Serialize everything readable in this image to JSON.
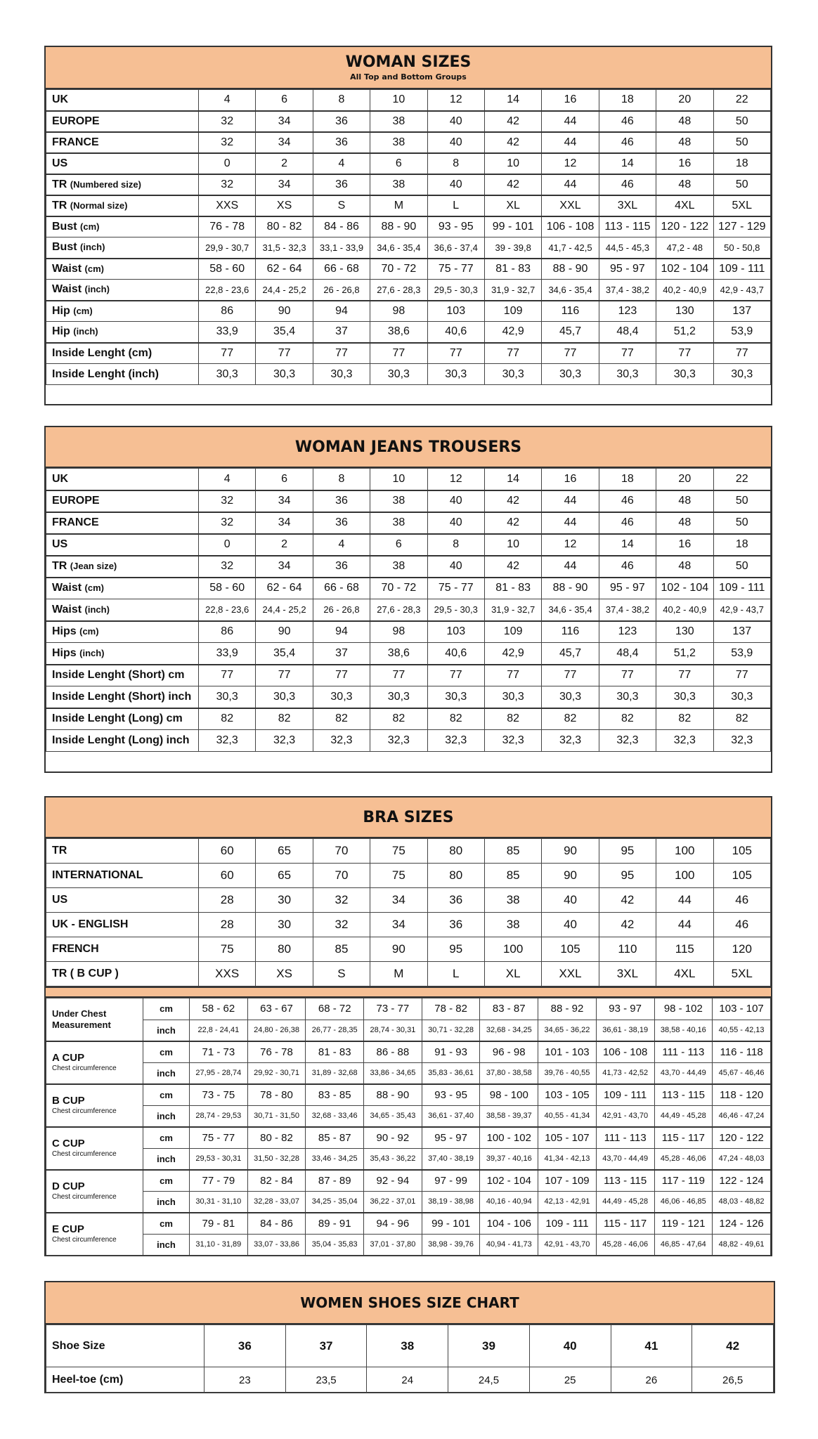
{
  "colors": {
    "header_fill": "#f6bf94",
    "border": "#333333"
  },
  "woman_sizes": {
    "title": "WOMAN SIZES",
    "subtitle": "All Top and Bottom Groups",
    "rows": [
      {
        "label": "UK",
        "sub": "",
        "g": 1,
        "values": [
          "4",
          "6",
          "8",
          "10",
          "12",
          "14",
          "16",
          "18",
          "20",
          "22"
        ]
      },
      {
        "label": "EUROPE",
        "sub": "",
        "g": 1,
        "values": [
          "32",
          "34",
          "36",
          "38",
          "40",
          "42",
          "44",
          "46",
          "48",
          "50"
        ]
      },
      {
        "label": "FRANCE",
        "sub": "",
        "g": 1,
        "values": [
          "32",
          "34",
          "36",
          "38",
          "40",
          "42",
          "44",
          "46",
          "48",
          "50"
        ]
      },
      {
        "label": "US",
        "sub": "",
        "g": 1,
        "values": [
          "0",
          "2",
          "4",
          "6",
          "8",
          "10",
          "12",
          "14",
          "16",
          "18"
        ]
      },
      {
        "label": "TR",
        "sub": "(Numbered size)",
        "g": 1,
        "values": [
          "32",
          "34",
          "36",
          "38",
          "40",
          "42",
          "44",
          "46",
          "48",
          "50"
        ]
      },
      {
        "label": "TR",
        "sub": "(Normal size)",
        "g": 1,
        "values": [
          "XXS",
          "XS",
          "S",
          "M",
          "L",
          "XL",
          "XXL",
          "3XL",
          "4XL",
          "5XL"
        ]
      },
      {
        "label": "Bust",
        "sub": "(cm)",
        "g": 1,
        "values": [
          "76 - 78",
          "80 - 82",
          "84 - 86",
          "88 - 90",
          "93 - 95",
          "99 - 101",
          "106 - 108",
          "113 - 115",
          "120 - 122",
          "127 - 129"
        ]
      },
      {
        "label": "Bust",
        "sub": "(inch)",
        "g": 0,
        "small": 1,
        "values": [
          "29,9 - 30,7",
          "31,5 - 32,3",
          "33,1 - 33,9",
          "34,6 - 35,4",
          "36,6 - 37,4",
          "39 - 39,8",
          "41,7 - 42,5",
          "44,5 - 45,3",
          "47,2 - 48",
          "50 - 50,8"
        ]
      },
      {
        "label": "Waist",
        "sub": "(cm)",
        "g": 1,
        "values": [
          "58 - 60",
          "62 - 64",
          "66 - 68",
          "70 - 72",
          "75 - 77",
          "81 - 83",
          "88 - 90",
          "95 - 97",
          "102 - 104",
          "109 - 111"
        ]
      },
      {
        "label": "Waist",
        "sub": "(inch)",
        "g": 0,
        "small": 1,
        "values": [
          "22,8 - 23,6",
          "24,4 - 25,2",
          "26 - 26,8",
          "27,6 - 28,3",
          "29,5 - 30,3",
          "31,9 - 32,7",
          "34,6 - 35,4",
          "37,4 - 38,2",
          "40,2 - 40,9",
          "42,9 - 43,7"
        ]
      },
      {
        "label": "Hip",
        "sub": "(cm)",
        "g": 1,
        "values": [
          "86",
          "90",
          "94",
          "98",
          "103",
          "109",
          "116",
          "123",
          "130",
          "137"
        ]
      },
      {
        "label": "Hip",
        "sub": "(inch)",
        "g": 0,
        "values": [
          "33,9",
          "35,4",
          "37",
          "38,6",
          "40,6",
          "42,9",
          "45,7",
          "48,4",
          "51,2",
          "53,9"
        ]
      },
      {
        "label": "Inside Lenght (cm)",
        "sub": "",
        "g": 1,
        "values": [
          "77",
          "77",
          "77",
          "77",
          "77",
          "77",
          "77",
          "77",
          "77",
          "77"
        ]
      },
      {
        "label": "Inside Lenght (inch)",
        "sub": "",
        "g": 0,
        "values": [
          "30,3",
          "30,3",
          "30,3",
          "30,3",
          "30,3",
          "30,3",
          "30,3",
          "30,3",
          "30,3",
          "30,3"
        ]
      }
    ]
  },
  "jeans": {
    "title": "WOMAN JEANS TROUSERS",
    "rows": [
      {
        "label": "UK",
        "sub": "",
        "g": 1,
        "values": [
          "4",
          "6",
          "8",
          "10",
          "12",
          "14",
          "16",
          "18",
          "20",
          "22"
        ]
      },
      {
        "label": "EUROPE",
        "sub": "",
        "g": 1,
        "values": [
          "32",
          "34",
          "36",
          "38",
          "40",
          "42",
          "44",
          "46",
          "48",
          "50"
        ]
      },
      {
        "label": "FRANCE",
        "sub": "",
        "g": 1,
        "values": [
          "32",
          "34",
          "36",
          "38",
          "40",
          "42",
          "44",
          "46",
          "48",
          "50"
        ]
      },
      {
        "label": "US",
        "sub": "",
        "g": 1,
        "values": [
          "0",
          "2",
          "4",
          "6",
          "8",
          "10",
          "12",
          "14",
          "16",
          "18"
        ]
      },
      {
        "label": "TR",
        "sub": "(Jean size)",
        "g": 1,
        "values": [
          "32",
          "34",
          "36",
          "38",
          "40",
          "42",
          "44",
          "46",
          "48",
          "50"
        ]
      },
      {
        "label": "Waist",
        "sub": "(cm)",
        "g": 1,
        "values": [
          "58 - 60",
          "62 - 64",
          "66 - 68",
          "70 - 72",
          "75 - 77",
          "81 - 83",
          "88 - 90",
          "95 - 97",
          "102 - 104",
          "109 - 111"
        ]
      },
      {
        "label": "Waist",
        "sub": "(inch)",
        "g": 0,
        "small": 1,
        "values": [
          "22,8 - 23,6",
          "24,4 - 25,2",
          "26 - 26,8",
          "27,6 - 28,3",
          "29,5 - 30,3",
          "31,9 - 32,7",
          "34,6 - 35,4",
          "37,4 - 38,2",
          "40,2 - 40,9",
          "42,9 - 43,7"
        ]
      },
      {
        "label": "Hips",
        "sub": "(cm)",
        "g": 1,
        "values": [
          "86",
          "90",
          "94",
          "98",
          "103",
          "109",
          "116",
          "123",
          "130",
          "137"
        ]
      },
      {
        "label": "Hips",
        "sub": "(inch)",
        "g": 0,
        "values": [
          "33,9",
          "35,4",
          "37",
          "38,6",
          "40,6",
          "42,9",
          "45,7",
          "48,4",
          "51,2",
          "53,9"
        ]
      },
      {
        "label": "Inside Lenght (Short) cm",
        "sub": "",
        "g": 1,
        "values": [
          "77",
          "77",
          "77",
          "77",
          "77",
          "77",
          "77",
          "77",
          "77",
          "77"
        ]
      },
      {
        "label": "Inside Lenght (Short) inch",
        "sub": "",
        "g": 0,
        "values": [
          "30,3",
          "30,3",
          "30,3",
          "30,3",
          "30,3",
          "30,3",
          "30,3",
          "30,3",
          "30,3",
          "30,3"
        ]
      },
      {
        "label": "Inside Lenght (Long) cm",
        "sub": "",
        "g": 1,
        "values": [
          "82",
          "82",
          "82",
          "82",
          "82",
          "82",
          "82",
          "82",
          "82",
          "82"
        ]
      },
      {
        "label": "Inside Lenght (Long) inch",
        "sub": "",
        "g": 0,
        "values": [
          "32,3",
          "32,3",
          "32,3",
          "32,3",
          "32,3",
          "32,3",
          "32,3",
          "32,3",
          "32,3",
          "32,3"
        ]
      }
    ]
  },
  "bra": {
    "title": "BRA SIZES",
    "size_rows": [
      {
        "label": "TR",
        "values": [
          "60",
          "65",
          "70",
          "75",
          "80",
          "85",
          "90",
          "95",
          "100",
          "105"
        ]
      },
      {
        "label": "INTERNATIONAL",
        "values": [
          "60",
          "65",
          "70",
          "75",
          "80",
          "85",
          "90",
          "95",
          "100",
          "105"
        ]
      },
      {
        "label": "US",
        "values": [
          "28",
          "30",
          "32",
          "34",
          "36",
          "38",
          "40",
          "42",
          "44",
          "46"
        ]
      },
      {
        "label": "UK - ENGLISH",
        "values": [
          "28",
          "30",
          "32",
          "34",
          "36",
          "38",
          "40",
          "42",
          "44",
          "46"
        ]
      },
      {
        "label": "FRENCH",
        "values": [
          "75",
          "80",
          "85",
          "90",
          "95",
          "100",
          "105",
          "110",
          "115",
          "120"
        ]
      },
      {
        "label": "TR ( B CUP )",
        "values": [
          "XXS",
          "XS",
          "S",
          "M",
          "L",
          "XL",
          "XXL",
          "3XL",
          "4XL",
          "5XL"
        ]
      }
    ],
    "measure_groups": [
      {
        "label": "Under Chest Measurement",
        "caption": "",
        "cm": [
          "58 - 62",
          "63 - 67",
          "68 - 72",
          "73 - 77",
          "78 - 82",
          "83 - 87",
          "88 - 92",
          "93 - 97",
          "98 - 102",
          "103 - 107"
        ],
        "inch": [
          "22,8 - 24,41",
          "24,80 - 26,38",
          "26,77 - 28,35",
          "28,74 - 30,31",
          "30,71 - 32,28",
          "32,68 - 34,25",
          "34,65 - 36,22",
          "36,61 - 38,19",
          "38,58 - 40,16",
          "40,55 - 42,13"
        ]
      },
      {
        "label": "A CUP",
        "caption": "Chest circumference",
        "cm": [
          "71 - 73",
          "76 - 78",
          "81 - 83",
          "86 - 88",
          "91 - 93",
          "96 - 98",
          "101 - 103",
          "106 - 108",
          "111 - 113",
          "116 - 118"
        ],
        "inch": [
          "27,95 - 28,74",
          "29,92 - 30,71",
          "31,89 - 32,68",
          "33,86 - 34,65",
          "35,83 - 36,61",
          "37,80 - 38,58",
          "39,76 - 40,55",
          "41,73 - 42,52",
          "43,70 - 44,49",
          "45,67 - 46,46"
        ]
      },
      {
        "label": "B CUP",
        "caption": "Chest circumference",
        "cm": [
          "73 - 75",
          "78 - 80",
          "83 - 85",
          "88 - 90",
          "93 - 95",
          "98 - 100",
          "103 - 105",
          "109 - 111",
          "113 - 115",
          "118 - 120"
        ],
        "inch": [
          "28,74 - 29,53",
          "30,71 - 31,50",
          "32,68 - 33,46",
          "34,65 - 35,43",
          "36,61 - 37,40",
          "38,58 - 39,37",
          "40,55 - 41,34",
          "42,91 - 43,70",
          "44,49 - 45,28",
          "46,46 - 47,24"
        ]
      },
      {
        "label": "C CUP",
        "caption": "Chest circumference",
        "cm": [
          "75 - 77",
          "80 - 82",
          "85 - 87",
          "90 - 92",
          "95 - 97",
          "100 - 102",
          "105 - 107",
          "111 - 113",
          "115 - 117",
          "120 - 122"
        ],
        "inch": [
          "29,53 - 30,31",
          "31,50 - 32,28",
          "33,46 - 34,25",
          "35,43 - 36,22",
          "37,40 - 38,19",
          "39,37 - 40,16",
          "41,34 - 42,13",
          "43,70 - 44,49",
          "45,28 - 46,06",
          "47,24 - 48,03"
        ]
      },
      {
        "label": "D CUP",
        "caption": "Chest circumference",
        "cm": [
          "77 - 79",
          "82 - 84",
          "87 - 89",
          "92 - 94",
          "97 - 99",
          "102 - 104",
          "107 - 109",
          "113 - 115",
          "117 - 119",
          "122 - 124"
        ],
        "inch": [
          "30,31 - 31,10",
          "32,28 - 33,07",
          "34,25 - 35,04",
          "36,22 - 37,01",
          "38,19 - 38,98",
          "40,16 - 40,94",
          "42,13 - 42,91",
          "44,49 - 45,28",
          "46,06 - 46,85",
          "48,03 - 48,82"
        ]
      },
      {
        "label": "E CUP",
        "caption": "Chest circumference",
        "cm": [
          "79 - 81",
          "84 - 86",
          "89 - 91",
          "94 - 96",
          "99 - 101",
          "104 - 106",
          "109 - 111",
          "115 - 117",
          "119 - 121",
          "124 - 126"
        ],
        "inch": [
          "31,10 - 31,89",
          "33,07 - 33,86",
          "35,04 - 35,83",
          "37,01 - 37,80",
          "38,98 - 39,76",
          "40,94 - 41,73",
          "42,91 - 43,70",
          "45,28 - 46,06",
          "46,85 - 47,64",
          "48,82 - 49,61"
        ]
      }
    ],
    "unit_cm": "cm",
    "unit_inch": "inch"
  },
  "shoes": {
    "title": "WOMEN SHOES SIZE CHART",
    "rows": [
      {
        "label": "Shoe Size",
        "values": [
          "36",
          "37",
          "38",
          "39",
          "40",
          "41",
          "42"
        ]
      },
      {
        "label": "Heel-toe (cm)",
        "values": [
          "23",
          "23,5",
          "24",
          "24,5",
          "25",
          "26",
          "26,5"
        ]
      }
    ]
  }
}
